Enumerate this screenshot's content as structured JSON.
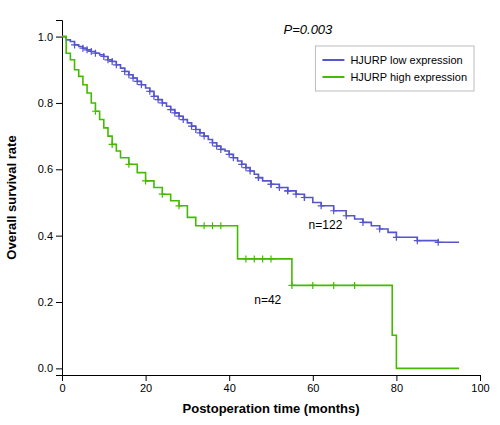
{
  "chart_data": {
    "type": "step",
    "xlabel": "Postoperation time (months)",
    "ylabel": "Overall survival rate",
    "xlim": [
      0,
      100
    ],
    "ylim": [
      -0.02,
      1.05
    ],
    "xticks": [
      0,
      20,
      40,
      60,
      80,
      100
    ],
    "yticks": [
      {
        "value": 0,
        "label": "0.0"
      },
      0.2,
      0.4,
      0.6,
      0.8,
      {
        "value": 1.0,
        "label": "1.0"
      }
    ],
    "grid": false,
    "legend": "upper right",
    "annotations": [
      {
        "text": "P=0.003"
      },
      {
        "text": "n=122",
        "x": 59,
        "y": 0.42
      },
      {
        "text": "n=42",
        "x": 46,
        "y": 0.195
      }
    ],
    "series": [
      {
        "name": "HJURP low expression",
        "color": "#5555cc",
        "x": [
          0,
          1,
          2,
          3,
          4,
          5,
          6,
          7,
          8,
          9,
          10,
          11,
          12,
          13,
          14,
          15,
          16,
          17,
          18,
          19,
          20,
          21,
          22,
          23,
          24,
          25,
          26,
          27,
          28,
          29,
          30,
          31,
          32,
          33,
          34,
          35,
          36,
          37,
          38,
          39,
          40,
          41,
          42,
          43,
          44,
          45,
          46,
          47,
          48,
          50,
          52,
          54,
          56,
          58,
          60,
          62,
          65,
          68,
          70,
          72,
          74,
          76,
          78,
          80,
          85,
          90,
          95
        ],
        "values": [
          1.0,
          0.99,
          0.985,
          0.975,
          0.97,
          0.965,
          0.96,
          0.955,
          0.95,
          0.945,
          0.94,
          0.93,
          0.925,
          0.915,
          0.905,
          0.895,
          0.885,
          0.875,
          0.865,
          0.855,
          0.845,
          0.835,
          0.82,
          0.81,
          0.8,
          0.79,
          0.78,
          0.77,
          0.76,
          0.75,
          0.74,
          0.73,
          0.72,
          0.71,
          0.7,
          0.69,
          0.68,
          0.67,
          0.66,
          0.655,
          0.645,
          0.635,
          0.625,
          0.615,
          0.605,
          0.595,
          0.585,
          0.575,
          0.565,
          0.555,
          0.545,
          0.535,
          0.525,
          0.515,
          0.5,
          0.49,
          0.475,
          0.46,
          0.45,
          0.44,
          0.43,
          0.42,
          0.41,
          0.395,
          0.385,
          0.38,
          0.38
        ],
        "censored": {
          "x": [
            3,
            5,
            6,
            7,
            8,
            10,
            11,
            12,
            13,
            15,
            16,
            17,
            18,
            19,
            21,
            22,
            23,
            24,
            26,
            27,
            28,
            29,
            31,
            32,
            33,
            34,
            36,
            37,
            38,
            40,
            41,
            43,
            45,
            47,
            50,
            52,
            54,
            56,
            58,
            44,
            47,
            50,
            54,
            58,
            62,
            65,
            68,
            72,
            76,
            80,
            85,
            90
          ],
          "values": [
            0.975,
            0.965,
            0.96,
            0.955,
            0.95,
            0.94,
            0.93,
            0.925,
            0.915,
            0.895,
            0.885,
            0.875,
            0.865,
            0.855,
            0.835,
            0.82,
            0.81,
            0.8,
            0.78,
            0.77,
            0.76,
            0.75,
            0.73,
            0.72,
            0.71,
            0.7,
            0.68,
            0.67,
            0.66,
            0.645,
            0.635,
            0.615,
            0.595,
            0.575,
            0.555,
            0.545,
            0.535,
            0.525,
            0.515,
            0.605,
            0.575,
            0.555,
            0.535,
            0.515,
            0.49,
            0.475,
            0.46,
            0.44,
            0.42,
            0.395,
            0.385,
            0.38
          ]
        }
      },
      {
        "name": "HJURP high expression",
        "color": "#44bb00",
        "x": [
          0,
          1,
          2,
          3,
          4,
          5,
          6,
          7,
          8,
          9,
          10,
          11,
          12,
          13,
          14,
          16,
          18,
          20,
          22,
          24,
          26,
          28,
          30,
          32,
          34,
          36,
          38,
          40,
          42,
          44,
          46,
          48,
          50,
          55,
          60,
          65,
          70,
          75,
          78,
          79,
          80,
          85,
          90,
          95
        ],
        "values": [
          1.0,
          0.95,
          0.93,
          0.9,
          0.88,
          0.855,
          0.83,
          0.8,
          0.775,
          0.75,
          0.725,
          0.7,
          0.675,
          0.655,
          0.635,
          0.615,
          0.59,
          0.565,
          0.545,
          0.525,
          0.505,
          0.49,
          0.455,
          0.43,
          0.43,
          0.43,
          0.43,
          0.43,
          0.33,
          0.33,
          0.33,
          0.33,
          0.33,
          0.25,
          0.25,
          0.25,
          0.25,
          0.25,
          0.25,
          0.1,
          0.0,
          0.0,
          0.0,
          0.0
        ],
        "censored": {
          "x": [
            8,
            12,
            16,
            20,
            24,
            28,
            34,
            36,
            38,
            44,
            46,
            48,
            50,
            55,
            60,
            65,
            70
          ],
          "values": [
            0.775,
            0.675,
            0.615,
            0.565,
            0.525,
            0.49,
            0.43,
            0.43,
            0.43,
            0.33,
            0.33,
            0.33,
            0.33,
            0.25,
            0.25,
            0.25,
            0.25
          ]
        }
      }
    ]
  }
}
